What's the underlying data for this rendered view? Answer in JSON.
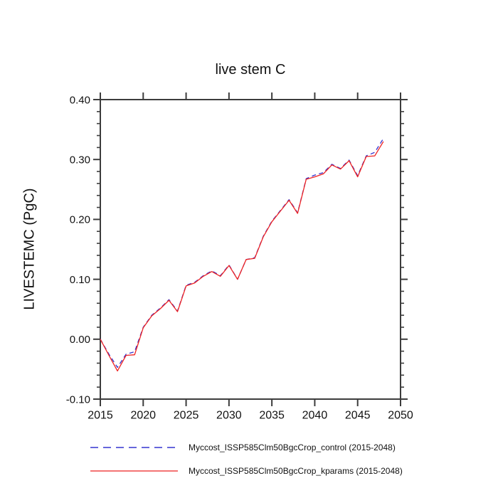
{
  "chart_data": {
    "type": "line",
    "title": "live stem C",
    "ylabel": "LIVESTEMC  (PgC)",
    "xlabel": "",
    "xlim": [
      2015,
      2050
    ],
    "ylim": [
      -0.1,
      0.4
    ],
    "x_ticks": [
      2015,
      2020,
      2025,
      2030,
      2035,
      2040,
      2045,
      2050
    ],
    "y_ticks": [
      -0.1,
      0.0,
      0.1,
      0.2,
      0.3,
      0.4
    ],
    "y_minor_step": 0.02,
    "grid": false,
    "legend_position": "below",
    "axis_color": "#3c3c3c",
    "x": [
      2015,
      2016,
      2017,
      2018,
      2019,
      2020,
      2021,
      2022,
      2023,
      2024,
      2025,
      2026,
      2027,
      2028,
      2029,
      2030,
      2031,
      2032,
      2033,
      2034,
      2035,
      2036,
      2037,
      2038,
      2039,
      2040,
      2041,
      2042,
      2043,
      2044,
      2045,
      2046,
      2047,
      2048
    ],
    "series": [
      {
        "name": "Myccost_ISSP585Clm50BgcCrop_control (2015-2048)",
        "color": "#3434cf",
        "style": "dashed",
        "values": [
          0.0,
          -0.025,
          -0.047,
          -0.025,
          -0.021,
          0.02,
          0.04,
          0.052,
          0.066,
          0.047,
          0.09,
          0.095,
          0.106,
          0.114,
          0.106,
          0.124,
          0.1,
          0.133,
          0.136,
          0.172,
          0.197,
          0.215,
          0.233,
          0.211,
          0.268,
          0.274,
          0.278,
          0.292,
          0.285,
          0.299,
          0.273,
          0.306,
          0.312,
          0.335
        ]
      },
      {
        "name": "Myccost_ISSP585Clm50BgcCrop_kparams (2015-2048)",
        "color": "#ee2222",
        "style": "solid",
        "values": [
          0.0,
          -0.027,
          -0.053,
          -0.027,
          -0.026,
          0.019,
          0.039,
          0.051,
          0.065,
          0.046,
          0.089,
          0.094,
          0.105,
          0.113,
          0.105,
          0.123,
          0.1,
          0.133,
          0.135,
          0.171,
          0.196,
          0.214,
          0.232,
          0.21,
          0.267,
          0.271,
          0.276,
          0.291,
          0.284,
          0.298,
          0.271,
          0.305,
          0.306,
          0.33
        ]
      }
    ]
  }
}
